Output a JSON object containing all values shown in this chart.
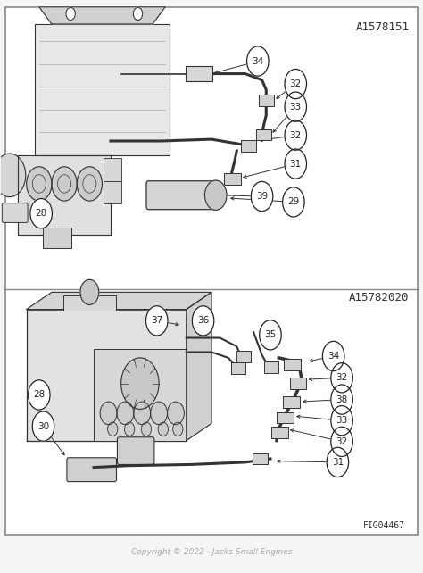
{
  "bg_color": "#f5f5f5",
  "border_color": "#888888",
  "line_color": "#333333",
  "label_color": "#222222",
  "title1": "A1578151",
  "title2": "A15782020",
  "fig_id": "FIG04467",
  "copyright": "Copyright © 2022 - Jacks Small Engines"
}
